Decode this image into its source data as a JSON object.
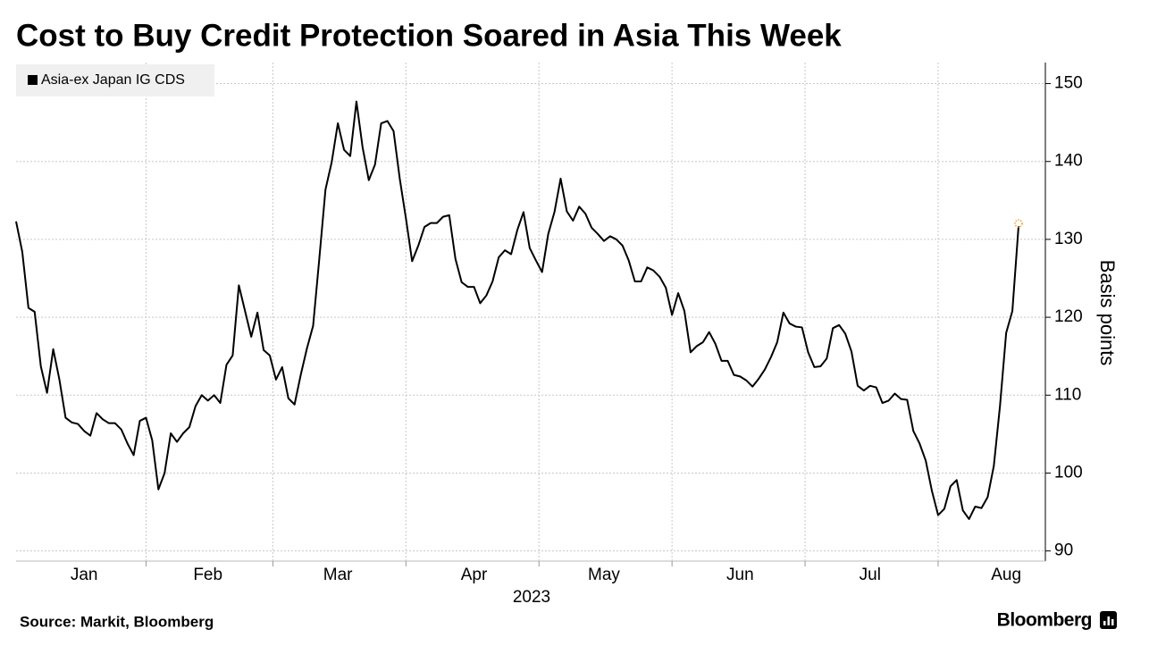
{
  "chart_data": {
    "type": "line",
    "title": "Cost to Buy Credit Protection Soared in Asia This Week",
    "x_label": "2023",
    "y_label": "Basis points",
    "source": "Source: Markit, Bloomberg",
    "brand": "Bloomberg",
    "legend_position": "upper left",
    "grid": true,
    "ylim": [
      88.7,
      152.7
    ],
    "yticks": [
      90,
      100,
      110,
      120,
      130,
      140,
      150
    ],
    "categories": [
      null,
      null,
      null,
      null,
      null,
      null,
      null,
      null,
      null,
      null,
      null,
      "Jan",
      null,
      null,
      null,
      null,
      null,
      null,
      null,
      null,
      null,
      null,
      null,
      null,
      null,
      null,
      null,
      null,
      null,
      null,
      null,
      "Feb",
      null,
      null,
      null,
      null,
      null,
      null,
      null,
      null,
      null,
      null,
      null,
      null,
      null,
      null,
      null,
      null,
      null,
      null,
      null,
      null,
      "Mar",
      null,
      null,
      null,
      null,
      null,
      null,
      null,
      null,
      null,
      null,
      null,
      null,
      null,
      null,
      null,
      null,
      null,
      null,
      null,
      null,
      null,
      "Apr",
      null,
      null,
      null,
      null,
      null,
      null,
      null,
      null,
      null,
      null,
      null,
      null,
      null,
      null,
      null,
      null,
      null,
      null,
      null,
      null,
      "May",
      null,
      null,
      null,
      null,
      null,
      null,
      null,
      null,
      null,
      null,
      null,
      null,
      null,
      null,
      null,
      null,
      null,
      null,
      null,
      null,
      null,
      "Jun",
      null,
      null,
      null,
      null,
      null,
      null,
      null,
      null,
      null,
      null,
      null,
      null,
      null,
      null,
      null,
      null,
      null,
      null,
      null,
      null,
      "Jul",
      null,
      null,
      null,
      null,
      null,
      null,
      null,
      null,
      null,
      null,
      null,
      null,
      null,
      null,
      null,
      null,
      null,
      null,
      null,
      null,
      null,
      "Aug",
      null,
      null
    ],
    "series": [
      {
        "name": "Asia-ex Japan IG CDS",
        "color": "#000000",
        "last_marker_color": "#f0a030",
        "values": [
          132.3,
          128.4,
          121.2,
          120.7,
          113.7,
          110.3,
          115.9,
          112,
          107.1,
          106.5,
          106.3,
          105.4,
          104.8,
          107.7,
          106.9,
          106.4,
          106.4,
          105.6,
          103.8,
          102.3,
          106.7,
          107.1,
          104.2,
          97.9,
          100,
          105.1,
          104,
          105.1,
          105.9,
          108.6,
          110,
          109.3,
          110,
          109,
          113.9,
          115.1,
          124.1,
          120.8,
          117.5,
          120.6,
          115.8,
          115.1,
          112,
          113.6,
          109.6,
          108.8,
          112.6,
          116,
          118.9,
          127.5,
          136.4,
          139.9,
          144.9,
          141.5,
          140.7,
          147.7,
          141.8,
          137.6,
          139.6,
          144.9,
          145.2,
          143.9,
          137.8,
          132.7,
          127.2,
          129.2,
          131.6,
          132.1,
          132.1,
          132.9,
          133.1,
          127.5,
          124.5,
          123.9,
          123.9,
          121.8,
          122.8,
          124.6,
          127.7,
          128.6,
          128.1,
          131.2,
          133.5,
          128.9,
          127.3,
          125.8,
          130.7,
          133.5,
          137.8,
          133.6,
          132.4,
          134.2,
          133.3,
          131.5,
          130.7,
          129.8,
          130.4,
          130,
          129.2,
          127.3,
          124.6,
          124.6,
          126.4,
          126,
          125.2,
          123.8,
          120.3,
          123.1,
          120.8,
          115.5,
          116.3,
          116.8,
          118.1,
          116.6,
          114.4,
          114.4,
          112.6,
          112.4,
          111.9,
          111.1,
          112.1,
          113.3,
          114.9,
          116.8,
          120.6,
          119.2,
          118.8,
          118.7,
          115.5,
          113.6,
          113.7,
          114.7,
          118.6,
          119,
          117.9,
          115.6,
          111.2,
          110.6,
          111.2,
          111,
          109,
          109.3,
          110.2,
          109.5,
          109.4,
          105.4,
          103.8,
          101.6,
          97.7,
          94.6,
          95.4,
          98.3,
          99.1,
          95.2,
          94.1,
          95.7,
          95.5,
          96.9,
          100.9,
          108.6,
          118,
          120.8,
          131.7
        ]
      }
    ]
  }
}
